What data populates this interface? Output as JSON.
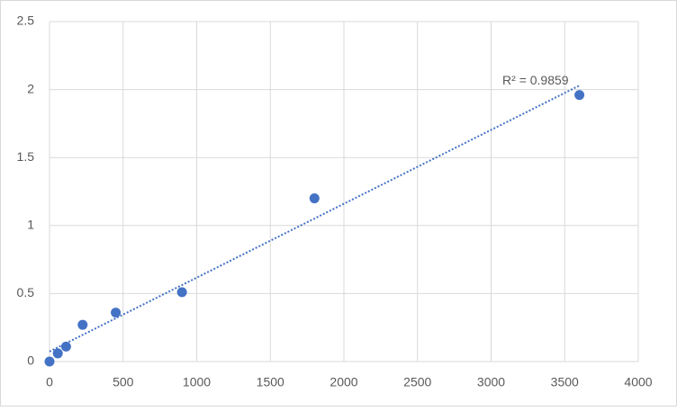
{
  "chart_data": {
    "type": "scatter",
    "series": [
      {
        "color": "#4472c4",
        "x": [
          0,
          56.25,
          112.5,
          225,
          450,
          900,
          1800,
          3600
        ],
        "values": [
          0,
          0.06,
          0.11,
          0.27,
          0.36,
          0.51,
          1.2,
          1.96
        ]
      }
    ],
    "trendline": "linear",
    "annotation": "R² = 0.9859",
    "xlim": [
      0,
      4000
    ],
    "xticks": [
      0,
      500,
      1000,
      1500,
      2000,
      2500,
      3000,
      3500,
      4000
    ],
    "ylim": [
      0,
      2.5
    ],
    "yticks": [
      0,
      0.5,
      1,
      1.5,
      2,
      2.5
    ],
    "grid": true
  }
}
